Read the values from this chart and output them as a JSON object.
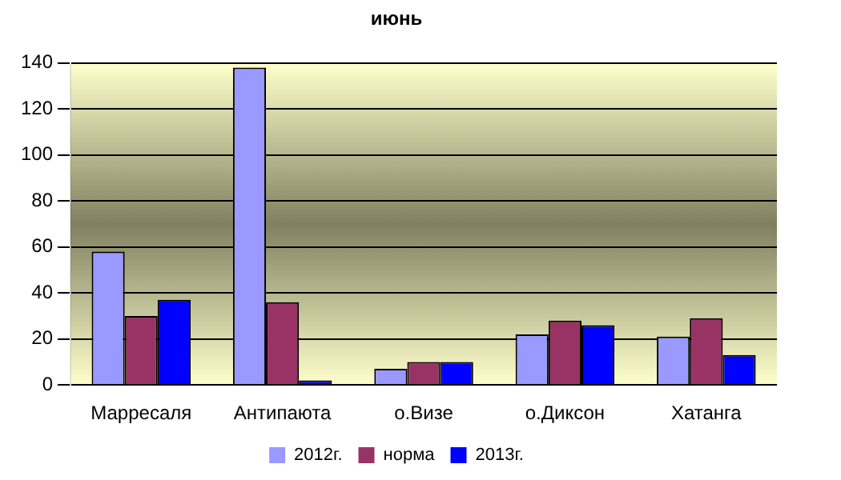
{
  "chart_data": {
    "type": "bar",
    "title": "июнь",
    "categories": [
      "Марресаля",
      "Антипаюта",
      "о.Визе",
      "о.Диксон",
      "Хатанга"
    ],
    "series": [
      {
        "name": "2012г.",
        "color": "#9999ff",
        "values": [
          58,
          138,
          7,
          22,
          21
        ]
      },
      {
        "name": "норма",
        "color": "#993366",
        "values": [
          30,
          36,
          10,
          28,
          29
        ]
      },
      {
        "name": "2013г.",
        "color": "#0000ff",
        "values": [
          37,
          2,
          10,
          26,
          13
        ]
      }
    ],
    "ylim": [
      0,
      140
    ],
    "yticks": [
      0,
      20,
      40,
      60,
      80,
      100,
      120,
      140
    ],
    "grid": "y",
    "legend": "bottom"
  }
}
